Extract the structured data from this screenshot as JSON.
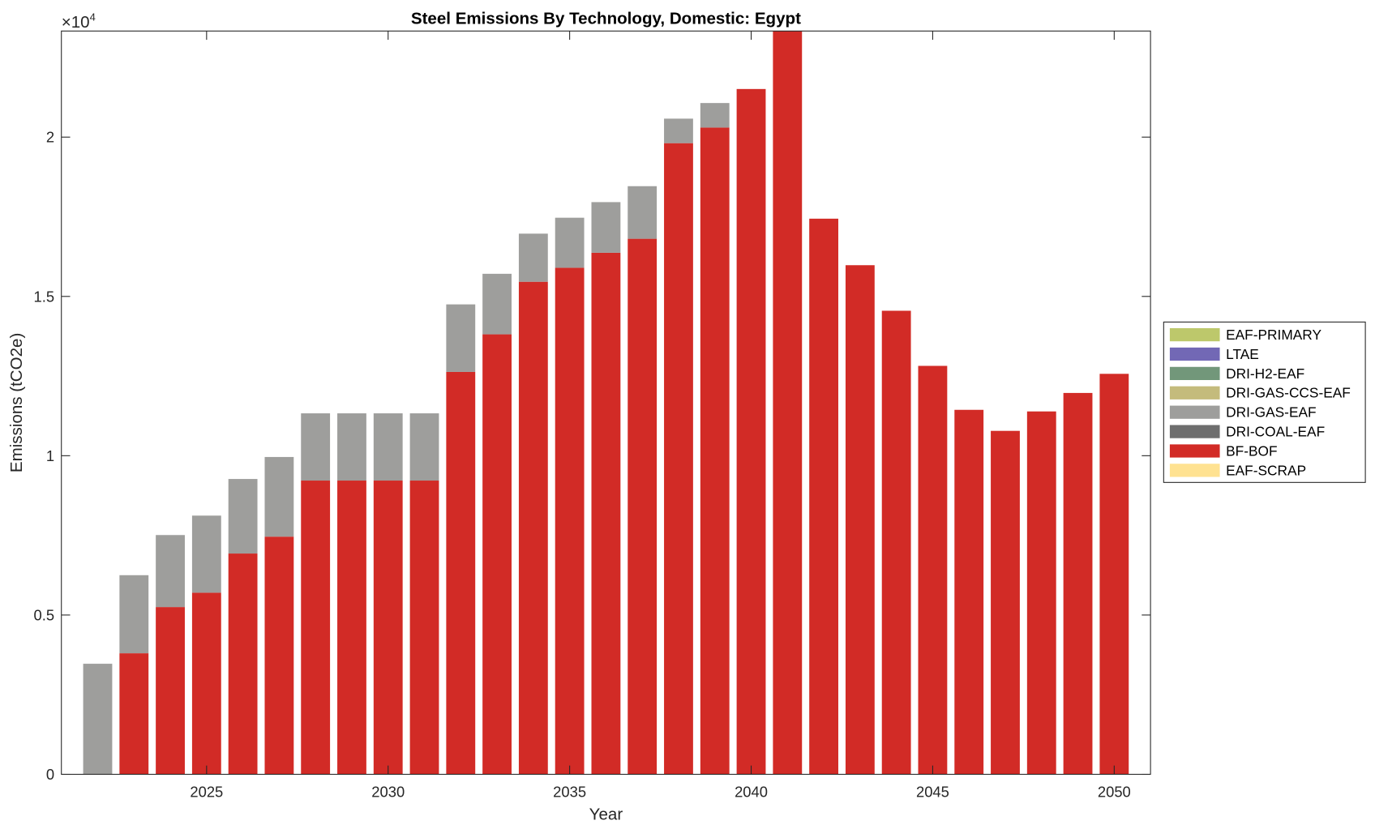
{
  "chart_data": {
    "type": "bar",
    "stacked": true,
    "title": "Steel Emissions By Technology, Domestic: Egypt",
    "xlabel": "Year",
    "ylabel": "Emissions (tCO2e)",
    "y_exponent_label": "×10",
    "y_exponent": "4",
    "xlim": [
      2021,
      2051
    ],
    "ylim": [
      0,
      23330
    ],
    "xticks": [
      2025,
      2030,
      2035,
      2040,
      2045,
      2050
    ],
    "xtick_labels": [
      "2025",
      "2030",
      "2035",
      "2040",
      "2045",
      "2050"
    ],
    "yticks": [
      0,
      5000,
      10000,
      15000,
      20000
    ],
    "ytick_labels": [
      "0",
      "0.5",
      "1",
      "1.5",
      "2"
    ],
    "grid": false,
    "legend_position": "outside-right",
    "categories": [
      2022,
      2023,
      2024,
      2025,
      2026,
      2027,
      2028,
      2029,
      2030,
      2031,
      2032,
      2033,
      2034,
      2035,
      2036,
      2037,
      2038,
      2039,
      2040,
      2041,
      2042,
      2043,
      2044,
      2045,
      2046,
      2047,
      2048,
      2049,
      2050
    ],
    "series": [
      {
        "name": "EAF-SCRAP",
        "color": "#FFE291",
        "values": [
          0,
          0,
          0,
          0,
          0,
          0,
          0,
          0,
          0,
          0,
          0,
          0,
          0,
          0,
          0,
          0,
          0,
          0,
          0,
          0,
          0,
          0,
          0,
          0,
          0,
          0,
          0,
          0,
          0
        ]
      },
      {
        "name": "BF-BOF",
        "color": "#D22B26",
        "values": [
          0,
          3800,
          5250,
          5700,
          6930,
          7460,
          9220,
          9220,
          9220,
          9220,
          12630,
          13810,
          15460,
          15900,
          16370,
          16810,
          19810,
          20300,
          21510,
          23400,
          17440,
          15980,
          14550,
          12820,
          11440,
          10780,
          11390,
          11970,
          12570
        ]
      },
      {
        "name": "DRI-COAL-EAF",
        "color": "#6E6E6E",
        "values": [
          0,
          0,
          0,
          0,
          0,
          0,
          0,
          0,
          0,
          0,
          0,
          0,
          0,
          0,
          0,
          0,
          0,
          0,
          0,
          0,
          0,
          0,
          0,
          0,
          0,
          0,
          0,
          0,
          0
        ]
      },
      {
        "name": "DRI-GAS-EAF",
        "color": "#9E9E9C",
        "values": [
          3470,
          2450,
          2260,
          2420,
          2340,
          2500,
          2110,
          2110,
          2110,
          2110,
          2120,
          1900,
          1510,
          1570,
          1590,
          1650,
          770,
          770,
          0,
          0,
          0,
          0,
          0,
          0,
          0,
          0,
          0,
          0,
          0
        ]
      },
      {
        "name": "DRI-GAS-CCS-EAF",
        "color": "#C4BB7C",
        "values": [
          0,
          0,
          0,
          0,
          0,
          0,
          0,
          0,
          0,
          0,
          0,
          0,
          0,
          0,
          0,
          0,
          0,
          0,
          0,
          0,
          0,
          0,
          0,
          0,
          0,
          0,
          0,
          0,
          0
        ]
      },
      {
        "name": "DRI-H2-EAF",
        "color": "#72977A",
        "values": [
          0,
          0,
          0,
          0,
          0,
          0,
          0,
          0,
          0,
          0,
          0,
          0,
          0,
          0,
          0,
          0,
          0,
          0,
          0,
          0,
          0,
          0,
          0,
          0,
          0,
          0,
          0,
          0,
          0
        ]
      },
      {
        "name": "LTAE",
        "color": "#7268B5",
        "values": [
          0,
          0,
          0,
          0,
          0,
          0,
          0,
          0,
          0,
          0,
          0,
          0,
          0,
          0,
          0,
          0,
          0,
          0,
          0,
          0,
          0,
          0,
          0,
          0,
          0,
          0,
          0,
          0,
          0
        ]
      },
      {
        "name": "EAF-PRIMARY",
        "color": "#BDC86B",
        "values": [
          0,
          0,
          0,
          0,
          0,
          0,
          0,
          0,
          0,
          0,
          0,
          0,
          0,
          0,
          0,
          0,
          0,
          0,
          0,
          0,
          0,
          0,
          0,
          0,
          0,
          0,
          0,
          0,
          0
        ]
      }
    ],
    "legend_order": [
      "EAF-PRIMARY",
      "LTAE",
      "DRI-H2-EAF",
      "DRI-GAS-CCS-EAF",
      "DRI-GAS-EAF",
      "DRI-COAL-EAF",
      "BF-BOF",
      "EAF-SCRAP"
    ]
  }
}
